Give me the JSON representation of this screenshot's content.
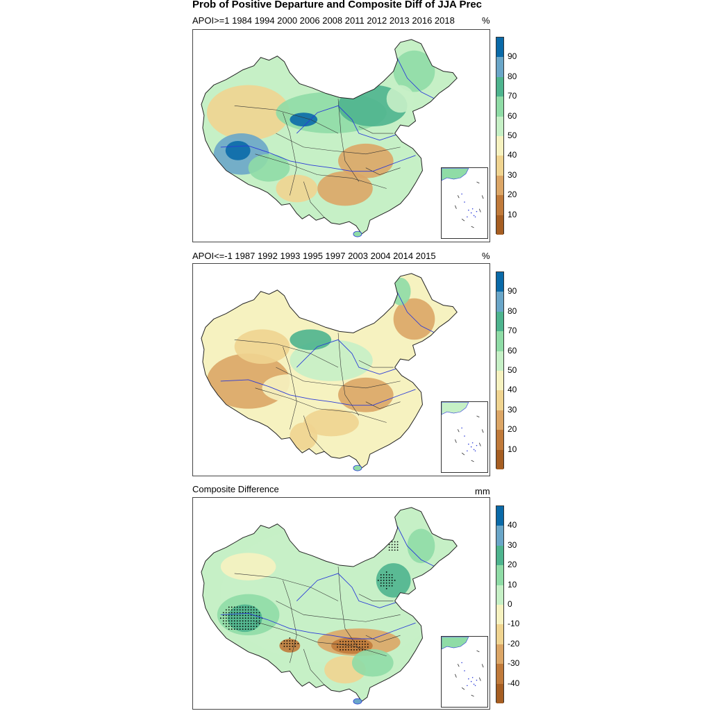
{
  "title": "Prob of Positive Departure and Composite Diff of JJA Prec",
  "panels": [
    {
      "id": "panel1",
      "label": "APOI>=1 1984 1994 2000 2006 2008 2011 2012 2013 2016 2018",
      "unit": "%",
      "colorbar_ticks": [
        "90",
        "80",
        "70",
        "60",
        "50",
        "40",
        "30",
        "20",
        "10"
      ]
    },
    {
      "id": "panel2",
      "label": "APOI<=-1 1987 1992 1993 1995 1997 2003 2004 2014 2015",
      "unit": "%",
      "colorbar_ticks": [
        "90",
        "80",
        "70",
        "60",
        "50",
        "40",
        "30",
        "20",
        "10"
      ]
    },
    {
      "id": "panel3",
      "label": "Composite Difference",
      "unit": "mm",
      "colorbar_ticks": [
        "40",
        "30",
        "20",
        "10",
        "0",
        "-10",
        "-20",
        "-30",
        "-40"
      ]
    }
  ],
  "colorbar_colors": [
    "#0a6aa8",
    "#6aa6c8",
    "#4eb48e",
    "#8fdca6",
    "#c6f0c6",
    "#f6f2c0",
    "#f0d490",
    "#dca666",
    "#c07a3a",
    "#a65e22"
  ]
}
